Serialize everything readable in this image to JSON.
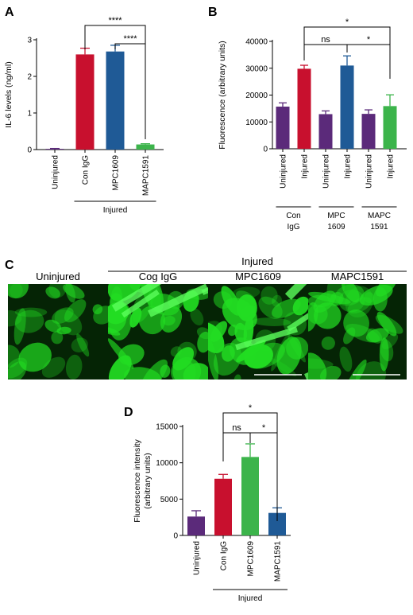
{
  "colors": {
    "purple": "#5b2a7a",
    "red": "#c8102e",
    "blue": "#1f5a96",
    "green": "#3cb44b",
    "fluor": "#22dd22"
  },
  "panels": {
    "A": "A",
    "B": "B",
    "C": "C",
    "D": "D"
  },
  "chart_data": [
    {
      "id": "A",
      "type": "bar",
      "ylabel": "IL-6 levels (ng/ml)",
      "ylim": [
        0,
        3
      ],
      "yticks": [
        0,
        1,
        2,
        3
      ],
      "categories": [
        "Uninjured",
        "Con IgG",
        "MPC1609",
        "MAPC1591"
      ],
      "values": [
        0.02,
        2.6,
        2.68,
        0.14
      ],
      "errors": [
        0.01,
        0.17,
        0.17,
        0.02
      ],
      "colors": [
        "#5b2a7a",
        "#c8102e",
        "#1f5a96",
        "#3cb44b"
      ],
      "group_label": "Injured",
      "significance": [
        {
          "from": 1,
          "to": 3,
          "label": "****"
        },
        {
          "from": 2,
          "to": 3,
          "label": "****"
        }
      ]
    },
    {
      "id": "B",
      "type": "bar",
      "ylabel": "Fluorescence (arbitrary units)",
      "ylim": [
        0,
        40000
      ],
      "yticks": [
        0,
        10000,
        20000,
        30000,
        40000
      ],
      "categories": [
        "Uninjured",
        "Injured",
        "Uninjured",
        "Injured",
        "Uninjured",
        "Injured"
      ],
      "values": [
        15700,
        29800,
        12900,
        31000,
        13000,
        15900
      ],
      "errors": [
        1400,
        1300,
        1200,
        3600,
        1500,
        4200
      ],
      "colors": [
        "#5b2a7a",
        "#c8102e",
        "#5b2a7a",
        "#1f5a96",
        "#5b2a7a",
        "#3cb44b"
      ],
      "groups": [
        {
          "line1": "Con",
          "line2": "IgG"
        },
        {
          "line1": "MPC",
          "line2": "1609"
        },
        {
          "line1": "MAPC",
          "line2": "1591"
        }
      ],
      "significance": [
        {
          "from": 1,
          "to": 5,
          "label": "*"
        },
        {
          "from": 1,
          "to": 3,
          "label": "ns"
        },
        {
          "from": 3,
          "to": 5,
          "label": "*"
        }
      ]
    },
    {
      "id": "D",
      "type": "bar",
      "ylabel_line1": "Fluorescence intensity",
      "ylabel_line2": "(arbitrary units)",
      "ylim": [
        0,
        15000
      ],
      "yticks": [
        0,
        5000,
        10000,
        15000
      ],
      "categories": [
        "Uninjured",
        "Con IgG",
        "MPC1609",
        "MAPC1591"
      ],
      "values": [
        2600,
        7800,
        10800,
        3100
      ],
      "errors": [
        800,
        600,
        1800,
        700
      ],
      "colors": [
        "#5b2a7a",
        "#c8102e",
        "#3cb44b",
        "#1f5a96"
      ],
      "group_label": "Injured",
      "significance": [
        {
          "from": 1,
          "to": 3,
          "label": "*"
        },
        {
          "from": 1,
          "to": 2,
          "label": "ns"
        },
        {
          "from": 2,
          "to": 3,
          "label": "*"
        }
      ]
    }
  ],
  "micrographs": {
    "group_label": "Injured",
    "labels": [
      "Uninjured",
      "Cog IgG",
      "MPC1609",
      "MAPC1591"
    ]
  }
}
